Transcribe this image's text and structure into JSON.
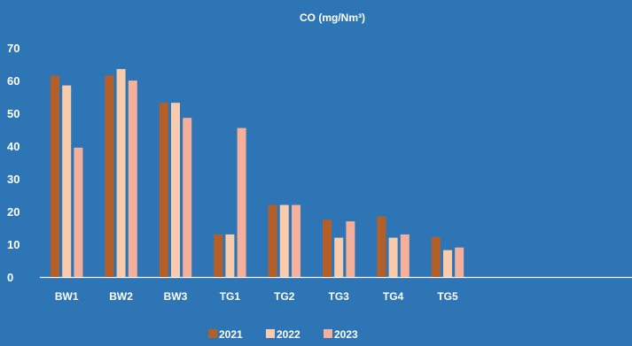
{
  "chart_data": {
    "type": "bar",
    "title": "CO (mg/Nm³)",
    "xlabel": "",
    "ylabel": "",
    "categories": [
      "BW1",
      "BW2",
      "BW3",
      "TG1",
      "TG2",
      "TG3",
      "TG4",
      "TG5"
    ],
    "ylim": [
      0,
      70
    ],
    "yticks": [
      "0",
      "10",
      "20",
      "30",
      "40",
      "50",
      "60",
      "70"
    ],
    "grid": false,
    "legend_position": "bottom",
    "series": [
      {
        "name": "2021",
        "color": "#B45F28",
        "values": [
          61.5,
          61.5,
          53.2,
          13.0,
          22.0,
          17.5,
          18.5,
          12.2
        ]
      },
      {
        "name": "2022",
        "color": "#F8CBAD",
        "values": [
          58.5,
          63.5,
          53.2,
          13.0,
          22.0,
          12.0,
          12.0,
          8.2
        ]
      },
      {
        "name": "2023",
        "color": "#F4B09A",
        "values": [
          39.5,
          60.0,
          48.6,
          45.5,
          22.0,
          17.0,
          13.0,
          9.0
        ]
      }
    ]
  }
}
